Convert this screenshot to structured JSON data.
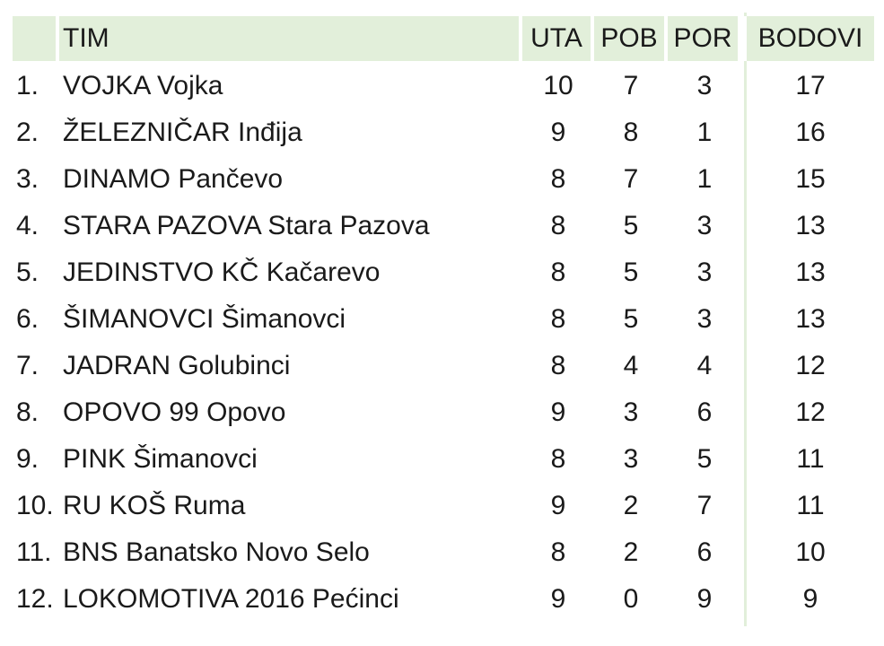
{
  "table": {
    "headers": {
      "rank": "",
      "team": "TIM",
      "played": "UTA",
      "wins": "POB",
      "losses": "POR",
      "points": "BODOVI"
    },
    "rows": [
      {
        "rank": "1.",
        "team": "VOJKA Vojka",
        "played": "10",
        "wins": "7",
        "losses": "3",
        "points": "17"
      },
      {
        "rank": "2.",
        "team": "ŽELEZNIČAR Inđija",
        "played": "9",
        "wins": "8",
        "losses": "1",
        "points": "16"
      },
      {
        "rank": "3.",
        "team": "DINAMO Pančevo",
        "played": "8",
        "wins": "7",
        "losses": "1",
        "points": "15"
      },
      {
        "rank": "4.",
        "team": "STARA PAZOVA Stara Pazova",
        "played": "8",
        "wins": "5",
        "losses": "3",
        "points": "13"
      },
      {
        "rank": "5.",
        "team": "JEDINSTVO KČ Kačarevo",
        "played": "8",
        "wins": "5",
        "losses": "3",
        "points": "13"
      },
      {
        "rank": "6.",
        "team": "ŠIMANOVCI Šimanovci",
        "played": "8",
        "wins": "5",
        "losses": "3",
        "points": "13"
      },
      {
        "rank": "7.",
        "team": "JADRAN Golubinci",
        "played": "8",
        "wins": "4",
        "losses": "4",
        "points": "12"
      },
      {
        "rank": "8.",
        "team": "OPOVO 99 Opovo",
        "played": "9",
        "wins": "3",
        "losses": "6",
        "points": "12"
      },
      {
        "rank": "9.",
        "team": "PINK Šimanovci",
        "played": "8",
        "wins": "3",
        "losses": "5",
        "points": "11"
      },
      {
        "rank": "10.",
        "team": "RU KOŠ Ruma",
        "played": "9",
        "wins": "2",
        "losses": "7",
        "points": "11"
      },
      {
        "rank": "11.",
        "team": "BNS Banatsko Novo Selo",
        "played": "8",
        "wins": "2",
        "losses": "6",
        "points": "10"
      },
      {
        "rank": "12.",
        "team": "LOKOMOTIVA 2016 Pećinci",
        "played": "9",
        "wins": "0",
        "losses": "9",
        "points": "9"
      }
    ]
  },
  "colors": {
    "header_bg": "#e2efda",
    "text": "#1a1a1a"
  }
}
